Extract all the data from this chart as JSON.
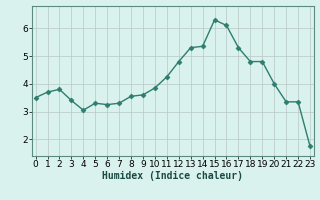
{
  "x": [
    0,
    1,
    2,
    3,
    4,
    5,
    6,
    7,
    8,
    9,
    10,
    11,
    12,
    13,
    14,
    15,
    16,
    17,
    18,
    19,
    20,
    21,
    22,
    23
  ],
  "y": [
    3.5,
    3.7,
    3.8,
    3.4,
    3.05,
    3.3,
    3.25,
    3.3,
    3.55,
    3.6,
    3.85,
    4.25,
    4.8,
    5.3,
    5.35,
    6.3,
    6.1,
    5.3,
    4.8,
    4.8,
    4.0,
    3.35,
    3.35,
    1.75
  ],
  "line_color": "#2e7d6e",
  "marker": "D",
  "marker_size": 2.5,
  "bg_color": "#d9f2ee",
  "grid_color": "#b8c8c4",
  "xlabel": "Humidex (Indice chaleur)",
  "ylim": [
    1.4,
    6.8
  ],
  "yticks": [
    2,
    3,
    4,
    5,
    6
  ],
  "xticks": [
    0,
    1,
    2,
    3,
    4,
    5,
    6,
    7,
    8,
    9,
    10,
    11,
    12,
    13,
    14,
    15,
    16,
    17,
    18,
    19,
    20,
    21,
    22,
    23
  ],
  "xlim": [
    -0.3,
    23.3
  ],
  "xlabel_fontsize": 7,
  "tick_fontsize": 6.5
}
